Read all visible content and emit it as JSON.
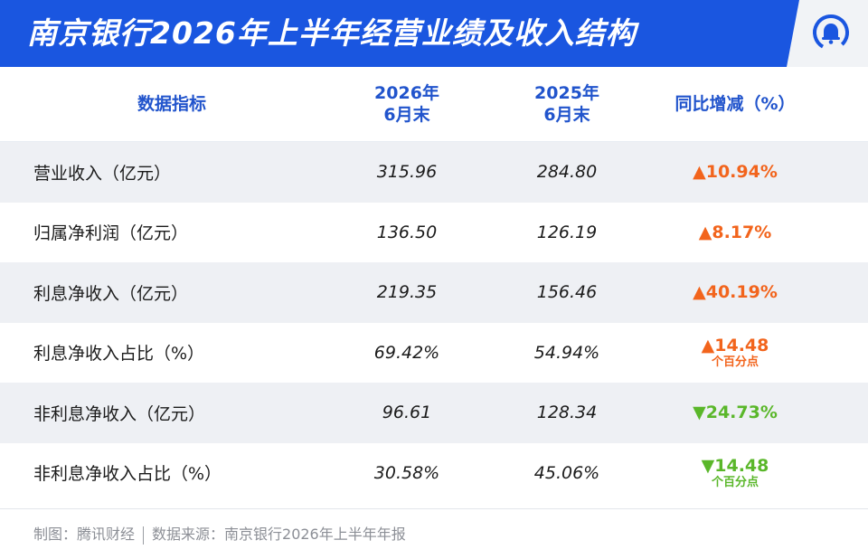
{
  "header": {
    "title": "南京银行2026年上半年经营业绩及收入结构",
    "logo_icon": "bell-logo-icon"
  },
  "table": {
    "columns": [
      "数据指标",
      "2026年\n6月末",
      "2025年\n6月末",
      "同比增减（%）"
    ],
    "col2": {
      "line1": "2026年",
      "line2": "6月末"
    },
    "col3": {
      "line1": "2025年",
      "line2": "6月末"
    },
    "rows": [
      {
        "label": "营业收入（亿元）",
        "v2026": "315.96",
        "v2025": "284.80",
        "change": "▲10.94%",
        "note": "",
        "direction": "up"
      },
      {
        "label": "归属净利润（亿元）",
        "v2026": "136.50",
        "v2025": "126.19",
        "change": "▲8.17%",
        "note": "",
        "direction": "up"
      },
      {
        "label": "利息净收入（亿元）",
        "v2026": "219.35",
        "v2025": "156.46",
        "change": "▲40.19%",
        "note": "",
        "direction": "up"
      },
      {
        "label": "利息净收入占比（%）",
        "v2026": "69.42%",
        "v2025": "54.94%",
        "change": "▲14.48",
        "note": "个百分点",
        "direction": "up"
      },
      {
        "label": "非利息净收入（亿元）",
        "v2026": "96.61",
        "v2025": "128.34",
        "change": "▼24.73%",
        "note": "",
        "direction": "down"
      },
      {
        "label": "非利息净收入占比（%）",
        "v2026": "30.58%",
        "v2025": "45.06%",
        "change": "▼14.48",
        "note": "个百分点",
        "direction": "down"
      }
    ]
  },
  "footer": {
    "credit": "制图：腾讯财经",
    "source": "数据来源：南京银行2026年上半年年报"
  },
  "colors": {
    "header_bg": "#1a56e0",
    "heading_text": "#2154cc",
    "up": "#f2641c",
    "down": "#5ab72a",
    "stripe": "#eef0f4"
  }
}
